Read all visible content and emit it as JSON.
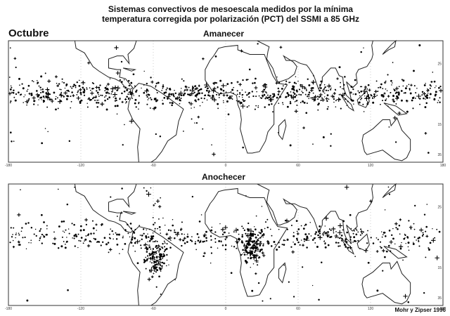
{
  "title": [
    "Sistemas convectivos de mesoescala medidos por la mínima",
    "temperatura corregida por polarización (PCT) del SSMI a 85 GHz"
  ],
  "month": "Octubre",
  "panels": [
    {
      "title": "Amanecer"
    },
    {
      "title": "Anochecer"
    }
  ],
  "longitude_labels": [
    "-180",
    "-120",
    "-60",
    "0",
    "60",
    "120",
    "180"
  ],
  "latitude_labels": [
    "25",
    "15",
    "35"
  ],
  "credit": "Mohr y Zipser 1996"
}
